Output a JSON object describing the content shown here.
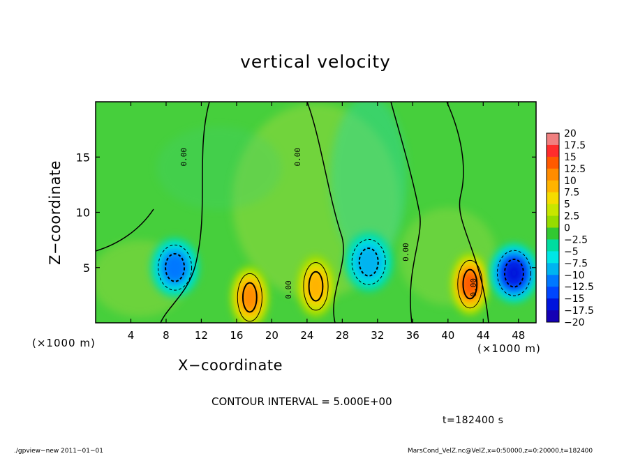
{
  "chart_data": {
    "type": "heatmap",
    "title": "vertical velocity",
    "xlabel": "X−coordinate",
    "ylabel": "Z−coordinate",
    "x_scale_note": "(×1000 m)",
    "z_scale_note": "(×1000 m)",
    "xlim": [
      0,
      50
    ],
    "ylim": [
      0,
      20
    ],
    "x_ticks": [
      4,
      8,
      12,
      16,
      20,
      24,
      28,
      32,
      36,
      40,
      44,
      48
    ],
    "y_ticks": [
      5,
      10,
      15
    ],
    "contour_interval": "CONTOUR INTERVAL = 5.000E+00",
    "contour_labels": [
      "0.00",
      "0.00",
      "0.00",
      "0.00",
      "0.00"
    ],
    "colorbar": {
      "labels": [
        "20",
        "17.5",
        "15",
        "12.5",
        "10",
        "7.5",
        "5",
        "2.5",
        "0",
        "−2.5",
        "−5",
        "−7.5",
        "−10",
        "−12.5",
        "−15",
        "−17.5",
        "−20"
      ],
      "colors": [
        "#f08080",
        "#ff2c2c",
        "#ff5a00",
        "#ff8c00",
        "#ffb400",
        "#f5dc00",
        "#c8e600",
        "#96dc00",
        "#32c832",
        "#00dca0",
        "#00e6e6",
        "#00b4f0",
        "#0078ff",
        "#0046ff",
        "#0014dc",
        "#1400b4",
        "#6400b4"
      ]
    },
    "features": [
      {
        "kind": "updraft",
        "x": 17.5,
        "z": 2.3,
        "peak": 12.5
      },
      {
        "kind": "updraft",
        "x": 25.0,
        "z": 3.3,
        "peak": 10
      },
      {
        "kind": "updraft",
        "x": 42.5,
        "z": 3.5,
        "peak": 14
      },
      {
        "kind": "downdraft",
        "x": 9.0,
        "z": 5.0,
        "peak": -9
      },
      {
        "kind": "downdraft",
        "x": 31.0,
        "z": 5.5,
        "peak": -7
      },
      {
        "kind": "downdraft",
        "x": 47.5,
        "z": 4.5,
        "peak": -14
      }
    ],
    "time": "t=182400 s"
  },
  "footer": {
    "left": "./gpview−new   2011−01−01",
    "right": "MarsCond_VelZ.nc@VelZ,x=0:50000,z=0:20000,t=182400"
  }
}
